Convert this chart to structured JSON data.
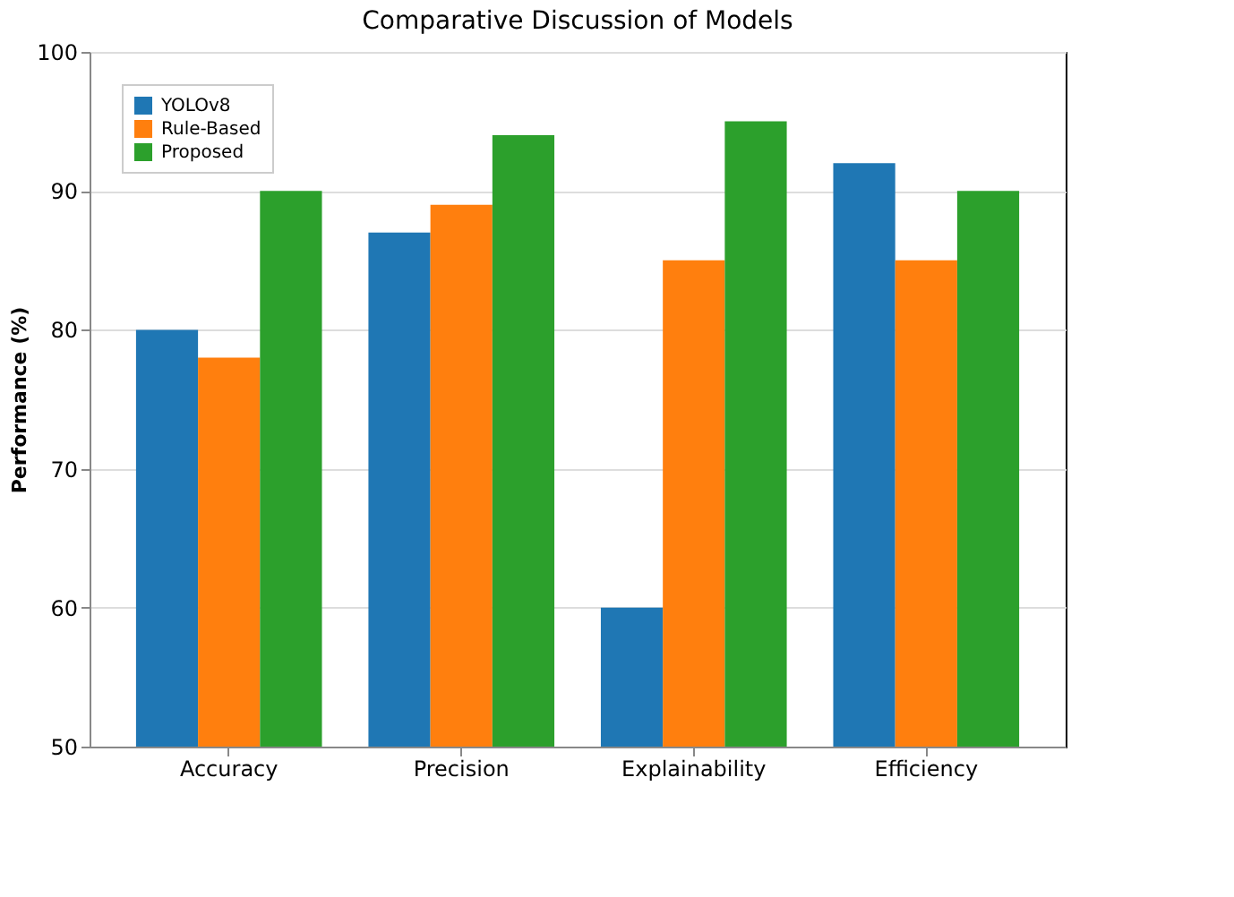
{
  "chart_data": {
    "type": "bar",
    "title": "Comparative Discussion of Models",
    "ylabel": "Performance (%)",
    "categories": [
      "Accuracy",
      "Precision",
      "Explainability",
      "Efficiency"
    ],
    "series": [
      {
        "name": "YOLOv8",
        "color": "#1f77b4",
        "values": [
          80,
          87,
          60,
          92
        ]
      },
      {
        "name": "Rule-Based",
        "color": "#ff7f0e",
        "values": [
          78,
          89,
          85,
          85
        ]
      },
      {
        "name": "Proposed",
        "color": "#2ca02c",
        "values": [
          90,
          94,
          95,
          90
        ]
      }
    ],
    "ylim": [
      50,
      100
    ],
    "yticks": [
      50,
      60,
      70,
      80,
      90,
      100
    ],
    "grid": "y",
    "legend": "top left"
  }
}
